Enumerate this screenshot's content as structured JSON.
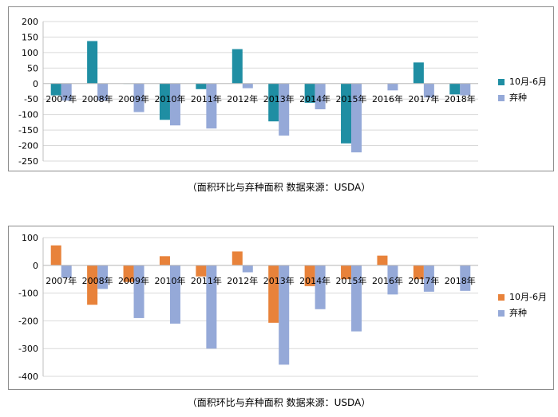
{
  "chart_data": [
    {
      "type": "bar",
      "categories": [
        "2007年",
        "2008年",
        "2009年",
        "2010年",
        "2011年",
        "2012年",
        "2013年",
        "2014年",
        "2015年",
        "2016年",
        "2017年",
        "2018年"
      ],
      "series": [
        {
          "name": "10月-6月",
          "values": [
            -38,
            137,
            -1,
            -117,
            -18,
            111,
            -122,
            -62,
            -193,
            0,
            68,
            -35
          ]
        },
        {
          "name": "弃种",
          "values": [
            -55,
            -55,
            -92,
            -135,
            -145,
            -15,
            -168,
            -83,
            -222,
            -22,
            -45,
            -38
          ]
        }
      ],
      "ylim": [
        -250,
        200
      ],
      "yticks": [
        200,
        150,
        100,
        50,
        0,
        -50,
        -100,
        -150,
        -200,
        -250
      ],
      "legend_position": "right",
      "grid": true,
      "colors": {
        "series1": "#1f8ea3",
        "series2": "#95a9d8"
      },
      "caption": "（面积环比与弃种面积    数据来源：USDA）"
    },
    {
      "type": "bar",
      "categories": [
        "2007年",
        "2008年",
        "2009年",
        "2010年",
        "2011年",
        "2012年",
        "2013年",
        "2014年",
        "2015年",
        "2016年",
        "2017年",
        "2018年"
      ],
      "series": [
        {
          "name": "10月-6月",
          "values": [
            72,
            -142,
            -60,
            33,
            -40,
            50,
            -207,
            -75,
            -50,
            35,
            -50,
            0
          ]
        },
        {
          "name": "弃种",
          "values": [
            -45,
            -85,
            -190,
            -210,
            -300,
            -25,
            -358,
            -158,
            -238,
            -105,
            -95,
            -92
          ]
        }
      ],
      "ylim": [
        -400,
        100
      ],
      "yticks": [
        100,
        0,
        -100,
        -200,
        -300,
        -400
      ],
      "legend_position": "right",
      "grid": true,
      "colors": {
        "series1": "#e8823a",
        "series2": "#95a9d8"
      },
      "caption": "（面积环比与弃种面积    数据来源：USDA）"
    }
  ]
}
